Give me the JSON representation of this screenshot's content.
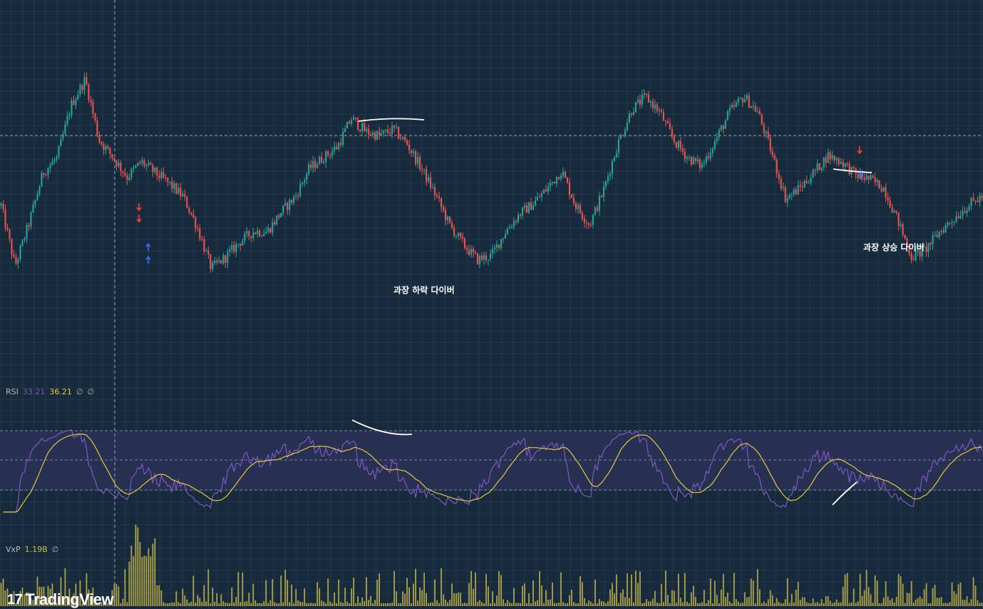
{
  "legends": {
    "rsi": {
      "name": "RSI",
      "value": "33.21",
      "signal": "36.21",
      "extra1": "∅",
      "extra2": "∅"
    },
    "volume": {
      "name": "VxP",
      "value": "1.19B",
      "extra": "∅"
    }
  },
  "annotations": {
    "bearish": "과장 하락 다이버",
    "bullish": "과장 상승 다이버"
  },
  "brand": {
    "name": "TradingView",
    "mark": "17"
  },
  "colors": {
    "background": "#172a3b",
    "up": "#26a69a",
    "down": "#ef5350",
    "rsi": "#7e57c2",
    "rsi_ma": "#e5c73e",
    "volume": "#c9b94a",
    "band": "#2e3359"
  },
  "chart_data": [
    {
      "type": "candlestick",
      "price_path": [
        0.4,
        0.12,
        0.32,
        0.55,
        0.62,
        0.86,
        0.98,
        0.7,
        0.62,
        0.53,
        0.6,
        0.55,
        0.5,
        0.44,
        0.3,
        0.11,
        0.16,
        0.23,
        0.28,
        0.28,
        0.37,
        0.44,
        0.57,
        0.62,
        0.67,
        0.8,
        0.74,
        0.72,
        0.75,
        0.68,
        0.57,
        0.45,
        0.31,
        0.22,
        0.15,
        0.17,
        0.28,
        0.36,
        0.41,
        0.48,
        0.56,
        0.4,
        0.31,
        0.47,
        0.68,
        0.84,
        0.9,
        0.83,
        0.7,
        0.62,
        0.58,
        0.7,
        0.83,
        0.9,
        0.83,
        0.64,
        0.43,
        0.48,
        0.55,
        0.63,
        0.6,
        0.54,
        0.52,
        0.48,
        0.33,
        0.16,
        0.2,
        0.28,
        0.34,
        0.4,
        0.44
      ],
      "arrows": [
        {
          "direction": "down",
          "color": "red",
          "count": 2
        },
        {
          "direction": "up",
          "color": "blue",
          "count": 2
        },
        {
          "direction": "down",
          "color": "red",
          "count": 1
        },
        {
          "direction": "up",
          "color": "blue",
          "count": 1
        }
      ]
    },
    {
      "type": "line",
      "name": "RSI",
      "band": [
        30,
        70
      ],
      "latest": [
        33.21,
        36.21
      ]
    },
    {
      "type": "bar",
      "name": "VxP",
      "latest": "1.19B"
    }
  ]
}
